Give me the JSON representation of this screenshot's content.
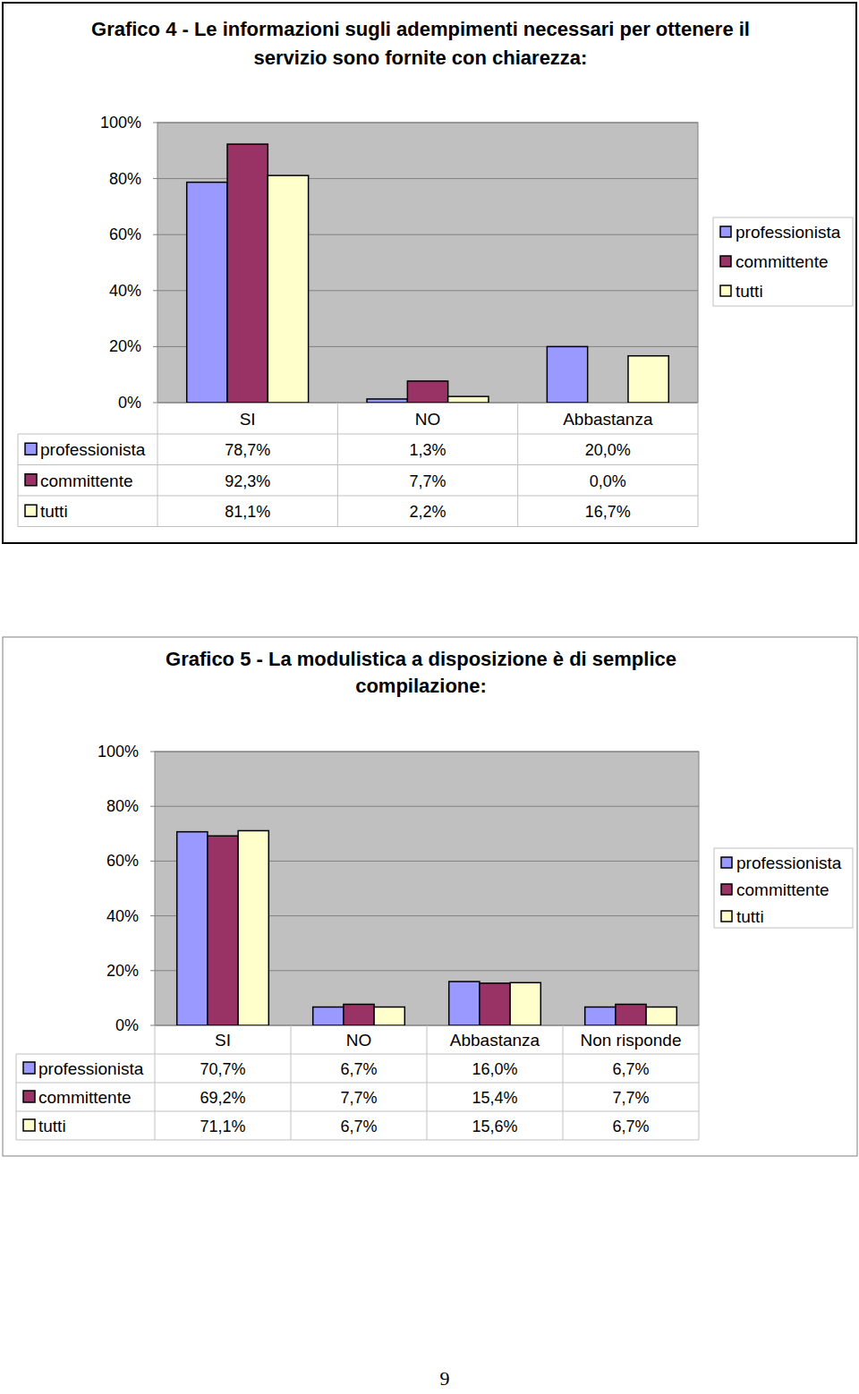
{
  "chart_data": [
    {
      "type": "bar",
      "title": "Grafico 4 - Le informazioni sugli adempimenti necessari per ottenere il servizio sono fornite con chiarezza:",
      "categories": [
        "SI",
        "NO",
        "Abbastanza"
      ],
      "series": [
        {
          "name": "professionista",
          "color": "#9999ff",
          "values": [
            78.7,
            1.3,
            20.0
          ],
          "value_labels": [
            "78,7%",
            "1,3%",
            "20,0%"
          ]
        },
        {
          "name": "committente",
          "color": "#993366",
          "values": [
            92.3,
            7.7,
            0.0
          ],
          "value_labels": [
            "92,3%",
            "7,7%",
            "0,0%"
          ]
        },
        {
          "name": "tutti",
          "color": "#ffffcc",
          "values": [
            81.1,
            2.2,
            16.7
          ],
          "value_labels": [
            "81,1%",
            "2,2%",
            "16,7%"
          ]
        }
      ],
      "ylim": [
        0,
        100
      ],
      "yticks": [
        {
          "value": 0,
          "label": "0%"
        },
        {
          "value": 20,
          "label": "20%"
        },
        {
          "value": 40,
          "label": "40%"
        },
        {
          "value": 60,
          "label": "60%"
        },
        {
          "value": 80,
          "label": "80%"
        },
        {
          "value": 100,
          "label": "100%"
        }
      ],
      "grid": true,
      "legend": "right"
    },
    {
      "type": "bar",
      "title": "Grafico 5 - La modulistica a disposizione è di semplice compilazione:",
      "categories": [
        "SI",
        "NO",
        "Abbastanza",
        "Non risponde"
      ],
      "series": [
        {
          "name": "professionista",
          "color": "#9999ff",
          "values": [
            70.7,
            6.7,
            16.0,
            6.7
          ],
          "value_labels": [
            "70,7%",
            "6,7%",
            "16,0%",
            "6,7%"
          ]
        },
        {
          "name": "committente",
          "color": "#993366",
          "values": [
            69.2,
            7.7,
            15.4,
            7.7
          ],
          "value_labels": [
            "69,2%",
            "7,7%",
            "15,4%",
            "7,7%"
          ]
        },
        {
          "name": "tutti",
          "color": "#ffffcc",
          "values": [
            71.1,
            6.7,
            15.6,
            6.7
          ],
          "value_labels": [
            "71,1%",
            "6,7%",
            "15,6%",
            "6,7%"
          ]
        }
      ],
      "ylim": [
        0,
        100
      ],
      "yticks": [
        {
          "value": 0,
          "label": "0%"
        },
        {
          "value": 20,
          "label": "20%"
        },
        {
          "value": 40,
          "label": "40%"
        },
        {
          "value": 60,
          "label": "60%"
        },
        {
          "value": 80,
          "label": "80%"
        },
        {
          "value": 100,
          "label": "100%"
        }
      ],
      "grid": true,
      "legend": "right"
    }
  ],
  "page_number": "9"
}
